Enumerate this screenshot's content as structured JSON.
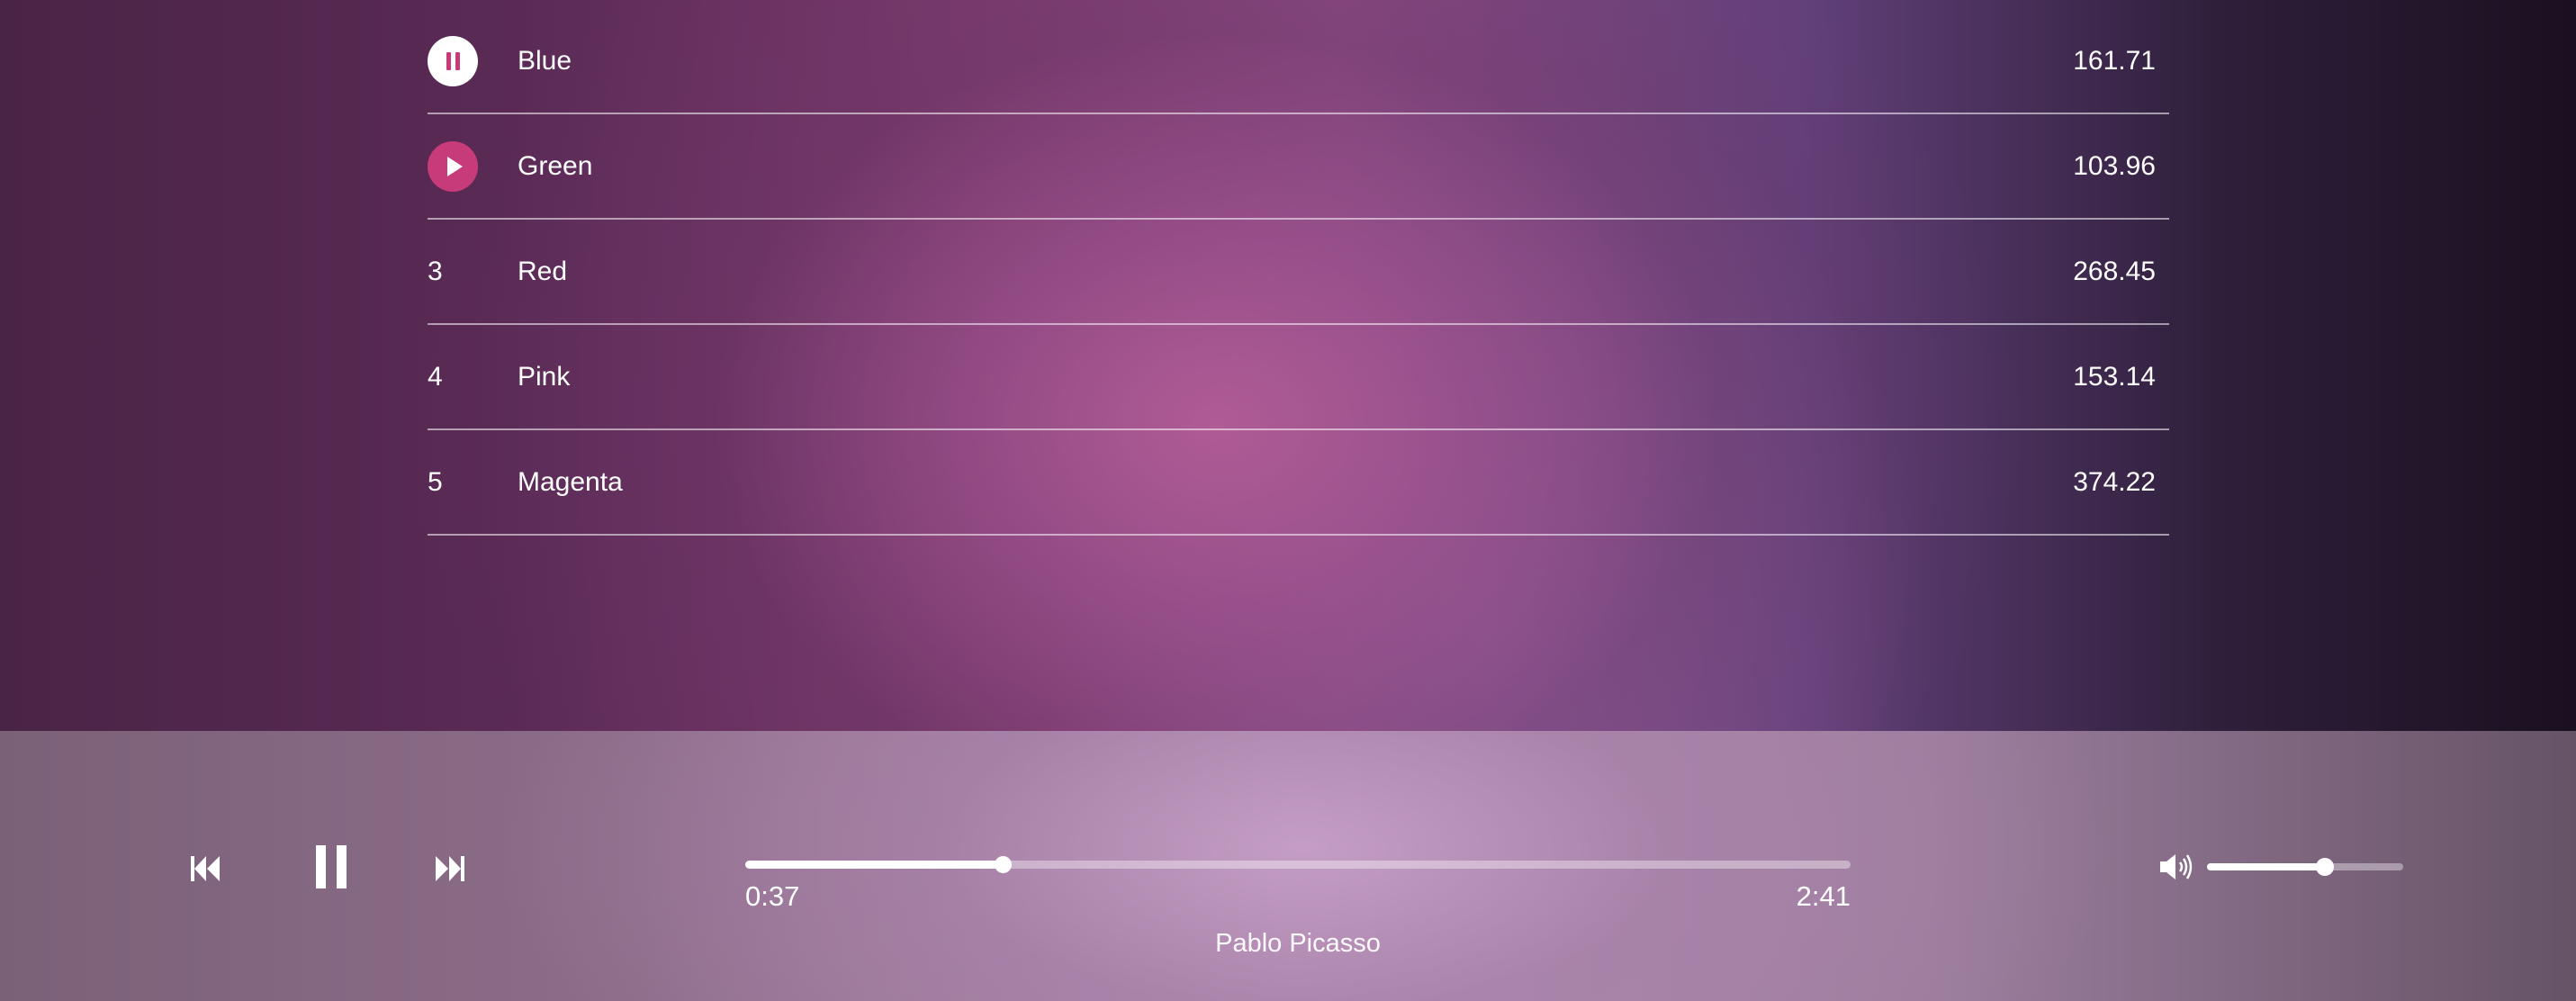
{
  "playlist": {
    "tracks": [
      {
        "lead": "",
        "state": "playing",
        "name": "Blue",
        "duration": "161.71"
      },
      {
        "lead": "",
        "state": "hover",
        "name": "Green",
        "duration": "103.96"
      },
      {
        "lead": "3",
        "state": "idle",
        "name": "Red",
        "duration": "268.45"
      },
      {
        "lead": "4",
        "state": "idle",
        "name": "Pink",
        "duration": "153.14"
      },
      {
        "lead": "5",
        "state": "idle",
        "name": "Magenta",
        "duration": "374.22"
      }
    ]
  },
  "player": {
    "current_time": "0:37",
    "total_time": "2:41",
    "artist": "Pablo Picasso",
    "progress_fraction": 0.233,
    "volume_fraction": 0.6
  },
  "colors": {
    "accent": "#c83b7a",
    "text": "#ffffff"
  },
  "icons": {
    "prev": "skip-back-icon",
    "pause": "pause-icon",
    "next": "skip-forward-icon",
    "volume": "volume-icon",
    "row_pause": "pause-icon",
    "row_play": "play-icon"
  }
}
